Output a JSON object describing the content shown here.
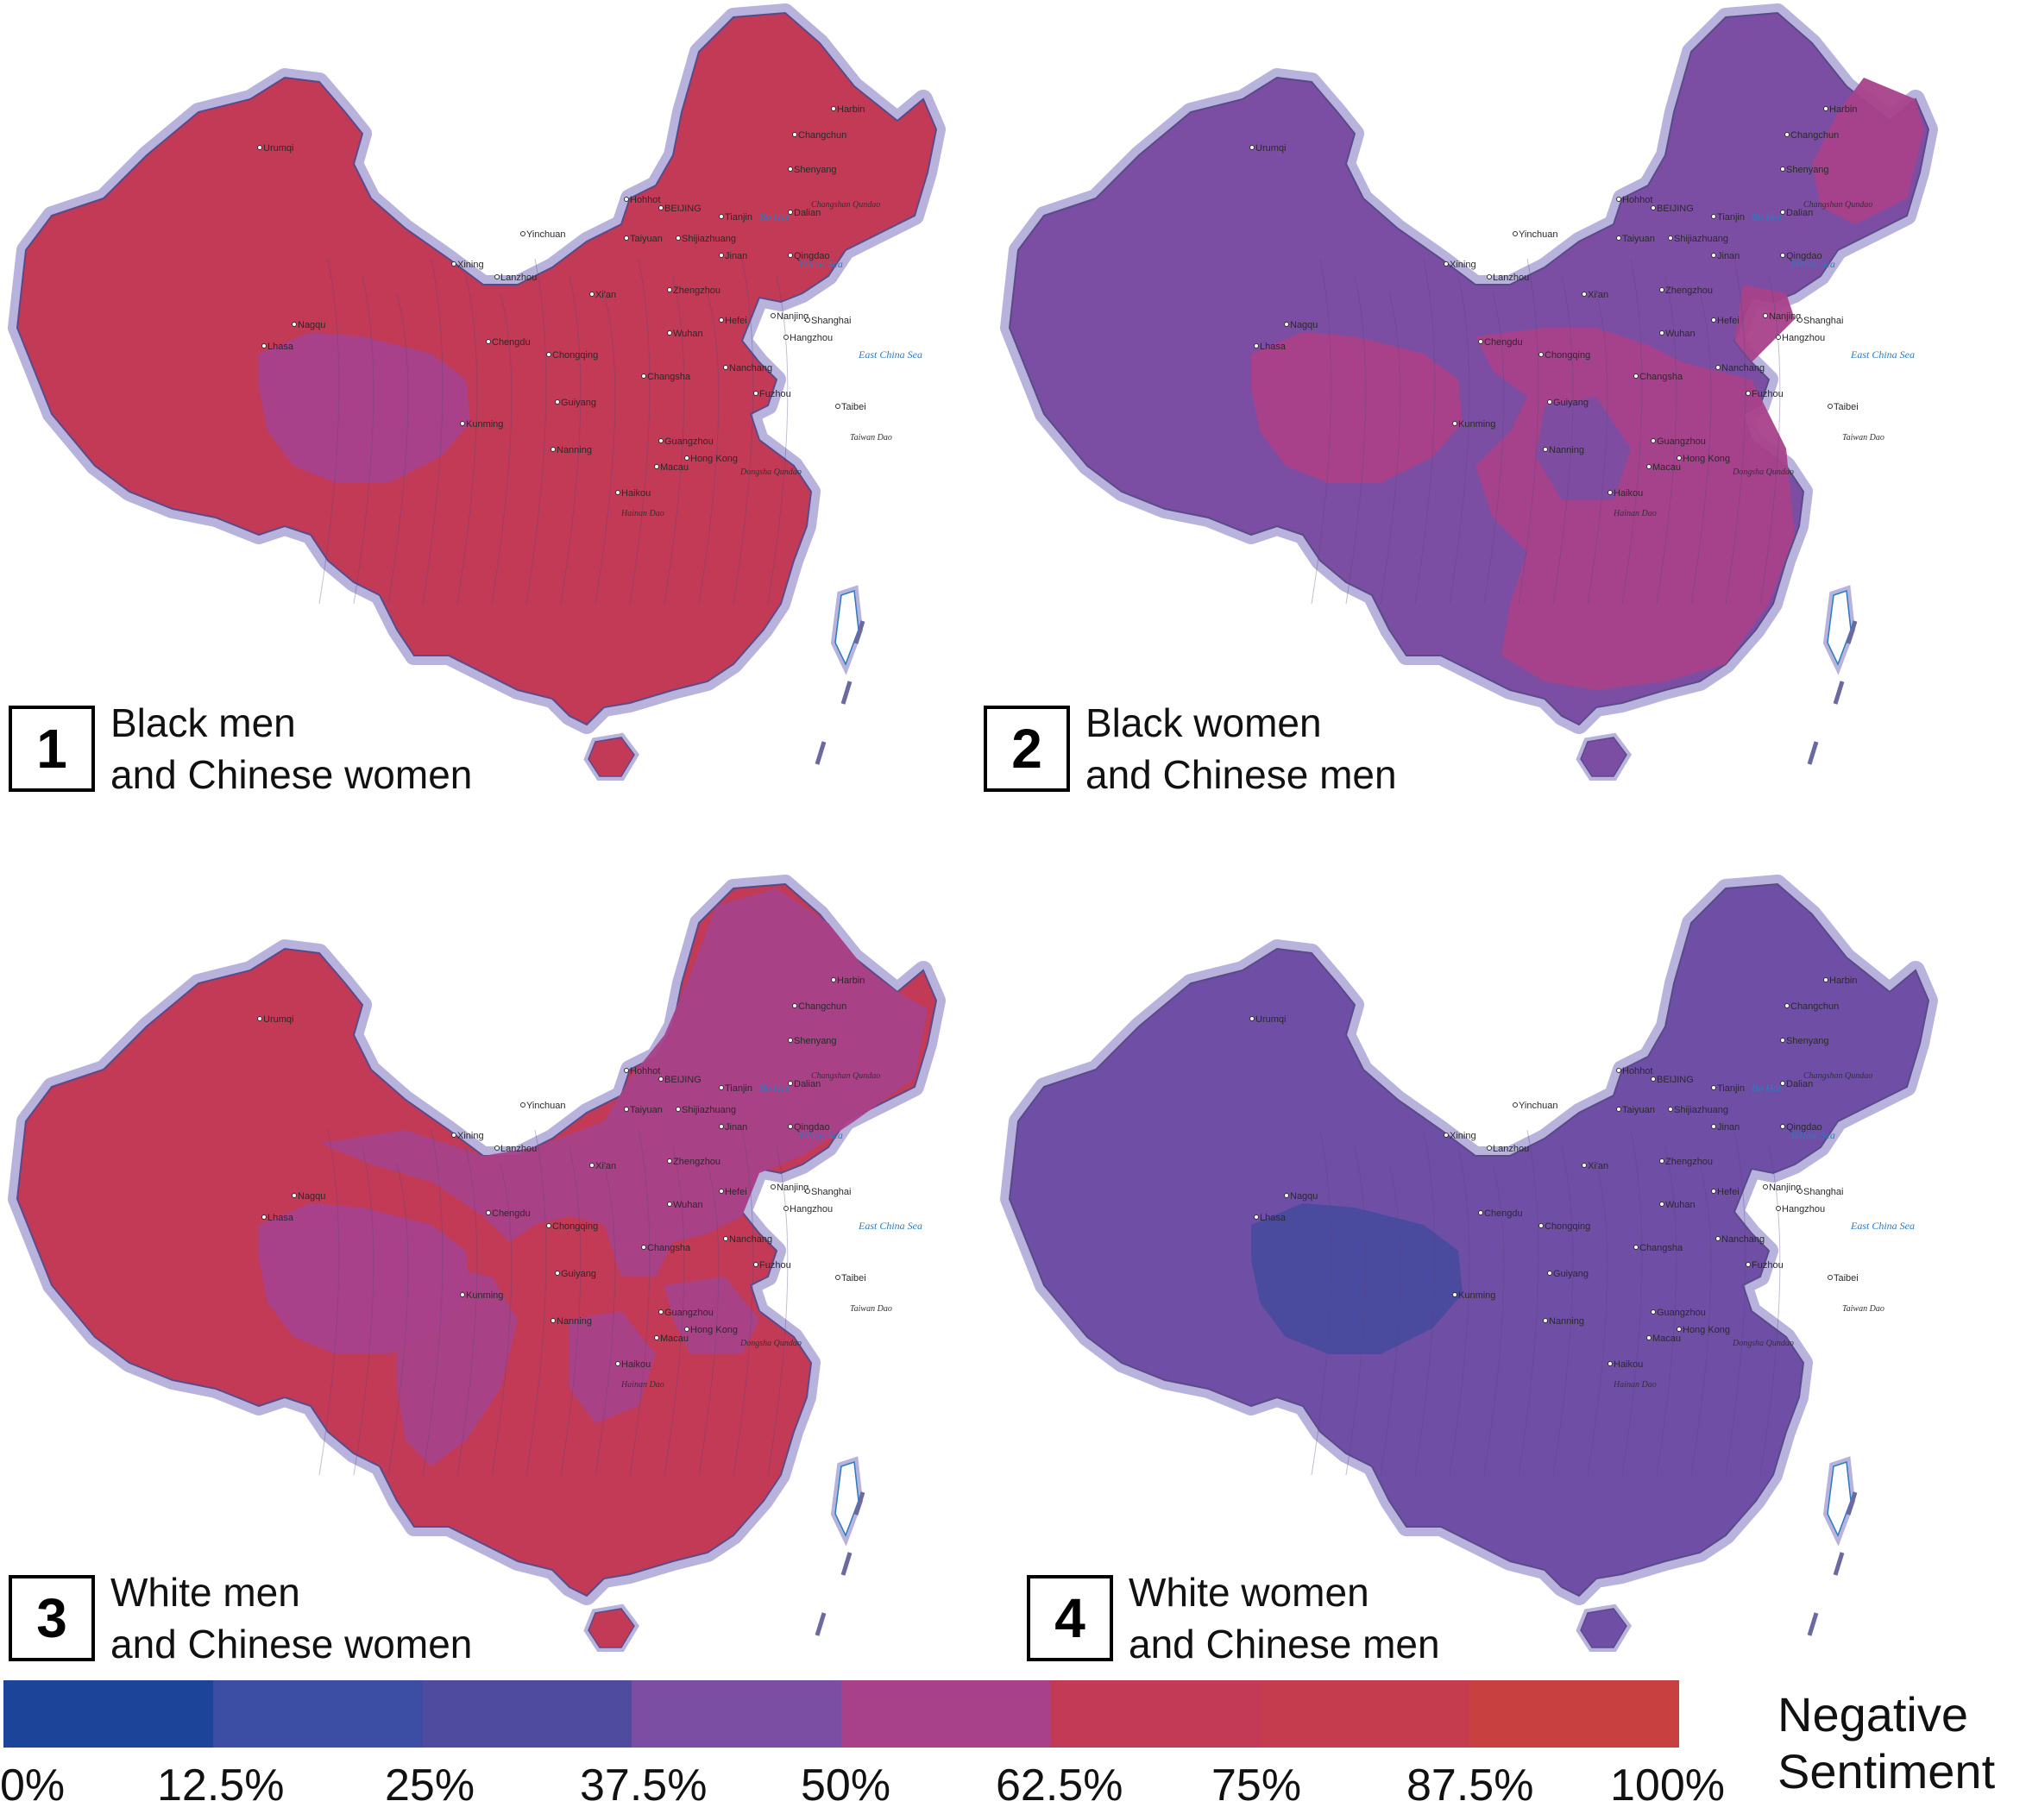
{
  "palette": {
    "red": "#c23a55",
    "magenta": "#a8418a",
    "purple": "#7b4ea3",
    "violet": "#6a4aa4",
    "indigo": "#4a4a9e",
    "border": "#b8b3dd"
  },
  "panels": [
    {
      "number": "1",
      "line1": "Black men",
      "line2": "and Chinese women",
      "base_color": "#c23a55",
      "qinghai_color": "#a8418a"
    },
    {
      "number": "2",
      "line1": "Black women",
      "line2": "and Chinese men",
      "base_color": "#7b4ea3",
      "qinghai_color": "#a8418a"
    },
    {
      "number": "3",
      "line1": "White men",
      "line2": "and Chinese women",
      "base_color": "#c23a55",
      "qinghai_color": "#a8418a"
    },
    {
      "number": "4",
      "line1": "White women",
      "line2": "and Chinese men",
      "base_color": "#6f4ea6",
      "qinghai_color": "#4a4a9e"
    }
  ],
  "map_labels": {
    "cities": [
      "Harbin",
      "Changchun",
      "Shenyang",
      "Hohhot",
      "BEIJING",
      "Tianjin",
      "Dalian",
      "Shijiazhuang",
      "Taiyuan",
      "Jinan",
      "Qingdao",
      "Yinchuan",
      "Xining",
      "Lanzhou",
      "Zhengzhou",
      "Xi'an",
      "Nanjing",
      "Hefei",
      "Shanghai",
      "Wuhan",
      "Chengdu",
      "Chongqing",
      "Changsha",
      "Nanchang",
      "Fuzhou",
      "Guiyang",
      "Kunming",
      "Nanning",
      "Guangzhou",
      "Hong Kong",
      "Macau",
      "Haikou",
      "Taibei",
      "Lhasa",
      "Nagqu",
      "Urumqi",
      "Hangzhou"
    ],
    "seas": [
      "Bo Hai",
      "Yellow Sea",
      "East China Sea"
    ],
    "islands": [
      "Hainan Dao",
      "Taiwan Dao",
      "Dongsha Qundao",
      "Changshan Qundao"
    ]
  },
  "legend": {
    "title_line1": "Negative",
    "title_line2": "Sentiment",
    "colors": [
      "#1c4599",
      "#3b4ea3",
      "#4f4c9f",
      "#7b4ea3",
      "#a8418a",
      "#c23a55",
      "#c43c4e",
      "#c8403f",
      "#e03a3a"
    ],
    "ticks": [
      "0%",
      "12.5%",
      "25%",
      "37.5%",
      "50%",
      "62.5%",
      "75%",
      "87.5%",
      "100%"
    ]
  }
}
